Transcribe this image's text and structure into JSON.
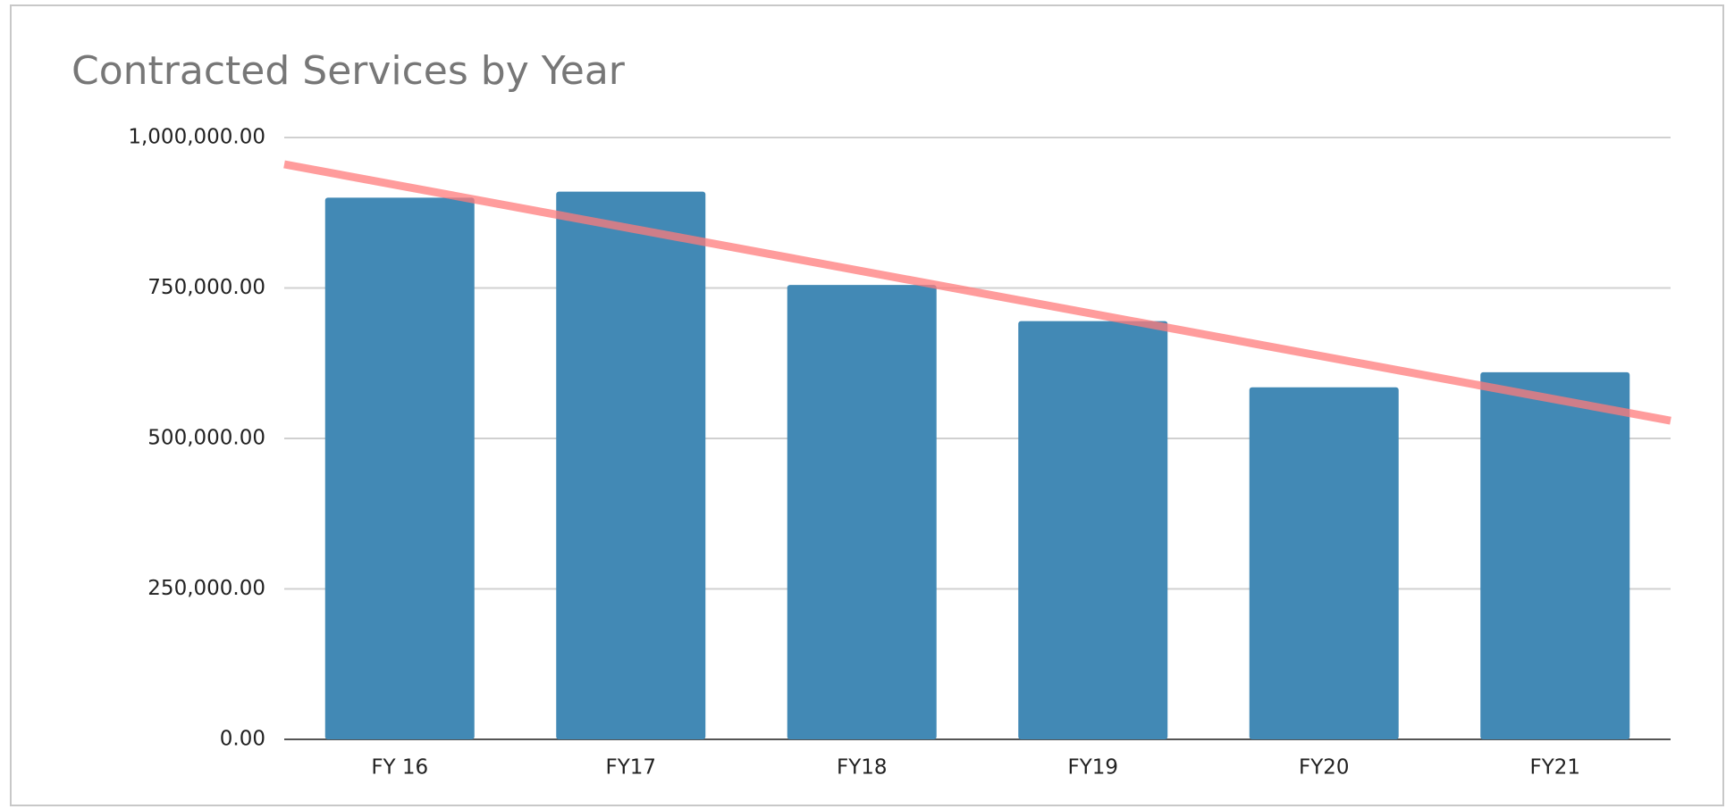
{
  "chart_data": {
    "type": "bar",
    "title": "Contracted Services by Year",
    "categories": [
      "FY 16",
      "FY17",
      "FY18",
      "FY19",
      "FY20",
      "FY21"
    ],
    "values": [
      900000,
      910000,
      755000,
      695000,
      585000,
      610000
    ],
    "color": "#4289b5",
    "ylim": [
      0,
      1000000
    ],
    "yticks": [
      {
        "value": 0,
        "label": "0.00"
      },
      {
        "value": 250000,
        "label": "250,000.00"
      },
      {
        "value": 500000,
        "label": "500,000.00"
      },
      {
        "value": 750000,
        "label": "750,000.00"
      },
      {
        "value": 1000000,
        "label": "1,000,000.00"
      }
    ],
    "grid": true,
    "trendline": {
      "type": "linear",
      "color": "#ff7b7b"
    }
  }
}
